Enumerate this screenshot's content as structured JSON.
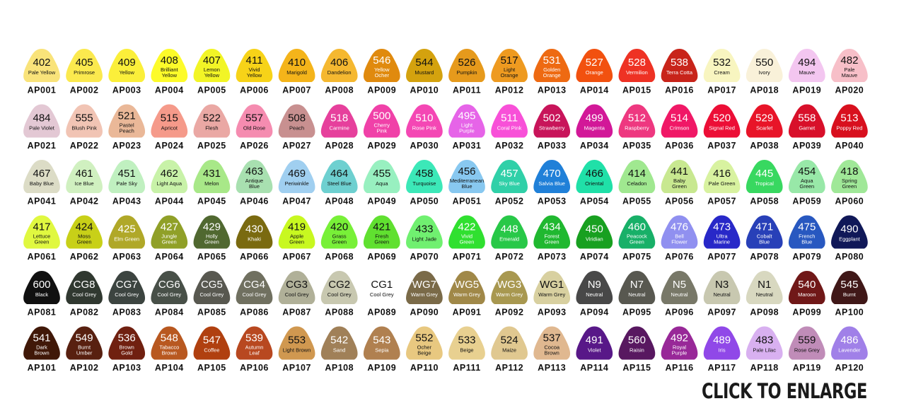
{
  "swatches": [
    {
      "code": "402",
      "name": [
        "Pale Yellow"
      ],
      "id": "AP001",
      "color": "#f9e37a"
    },
    {
      "code": "405",
      "name": [
        "Primrose"
      ],
      "id": "AP002",
      "color": "#fbe94e"
    },
    {
      "code": "409",
      "name": [
        "Yellow"
      ],
      "id": "AP003",
      "color": "#fbef3a"
    },
    {
      "code": "408",
      "name": [
        "Brilliant",
        "Yellow"
      ],
      "id": "AP004",
      "color": "#fdfb2a"
    },
    {
      "code": "407",
      "name": [
        "Lemon",
        "Yellow"
      ],
      "id": "AP005",
      "color": "#f2f526"
    },
    {
      "code": "411",
      "name": [
        "Vivid",
        "Yellow"
      ],
      "id": "AP006",
      "color": "#f7d318"
    },
    {
      "code": "410",
      "name": [
        "Marigold"
      ],
      "id": "AP007",
      "color": "#f4b41a"
    },
    {
      "code": "406",
      "name": [
        "Dandelion"
      ],
      "id": "AP008",
      "color": "#f5b830"
    },
    {
      "code": "546",
      "name": [
        "Yellow",
        "Ocher"
      ],
      "id": "AP009",
      "color": "#e08a0e"
    },
    {
      "code": "544",
      "name": [
        "Mustard"
      ],
      "id": "AP010",
      "color": "#d4a20e"
    },
    {
      "code": "526",
      "name": [
        "Pumpkin"
      ],
      "id": "AP011",
      "color": "#e69a1c"
    },
    {
      "code": "517",
      "name": [
        "Light",
        "Orange"
      ],
      "id": "AP012",
      "color": "#ee9a20"
    },
    {
      "code": "531",
      "name": [
        "Golden",
        "Orange"
      ],
      "id": "AP013",
      "color": "#ee6a12"
    },
    {
      "code": "527",
      "name": [
        "Orange"
      ],
      "id": "AP014",
      "color": "#f2510f"
    },
    {
      "code": "528",
      "name": [
        "Vermilion"
      ],
      "id": "AP015",
      "color": "#ee3224"
    },
    {
      "code": "538",
      "name": [
        "Terra Cotta"
      ],
      "id": "AP016",
      "color": "#c8241a"
    },
    {
      "code": "532",
      "name": [
        "Cream"
      ],
      "id": "AP017",
      "color": "#f8f5c0"
    },
    {
      "code": "550",
      "name": [
        "Ivory"
      ],
      "id": "AP018",
      "color": "#f9f1d9"
    },
    {
      "code": "494",
      "name": [
        "Mauve"
      ],
      "id": "AP019",
      "color": "#f3c6f0"
    },
    {
      "code": "482",
      "name": [
        "Pale",
        "Mauve"
      ],
      "id": "AP020",
      "color": "#f7bfc8"
    },
    {
      "code": "484",
      "name": [
        "Pale Violet"
      ],
      "id": "AP021",
      "color": "#e3c8d4"
    },
    {
      "code": "555",
      "name": [
        "Blush Pink"
      ],
      "id": "AP022",
      "color": "#f1c4b4"
    },
    {
      "code": "521",
      "name": [
        "Pastel",
        "Peach"
      ],
      "id": "AP023",
      "color": "#eab898"
    },
    {
      "code": "515",
      "name": [
        "Apricot"
      ],
      "id": "AP024",
      "color": "#f59a8a"
    },
    {
      "code": "522",
      "name": [
        "Flesh"
      ],
      "id": "AP025",
      "color": "#eaa8a4"
    },
    {
      "code": "557",
      "name": [
        "Old Rose"
      ],
      "id": "AP026",
      "color": "#f58cb0"
    },
    {
      "code": "508",
      "name": [
        "Peach"
      ],
      "id": "AP027",
      "color": "#c89090"
    },
    {
      "code": "518",
      "name": [
        "Carmine"
      ],
      "id": "AP028",
      "color": "#e6409c"
    },
    {
      "code": "500",
      "name": [
        "Cherry",
        "Pink"
      ],
      "id": "AP029",
      "color": "#f041a8"
    },
    {
      "code": "510",
      "name": [
        "Rose Pink"
      ],
      "id": "AP030",
      "color": "#f447b4"
    },
    {
      "code": "495",
      "name": [
        "Light",
        "Purple"
      ],
      "id": "AP031",
      "color": "#e664e8"
    },
    {
      "code": "511",
      "name": [
        "Coral Pink"
      ],
      "id": "AP032",
      "color": "#f850d8"
    },
    {
      "code": "502",
      "name": [
        "Strawberry"
      ],
      "id": "AP033",
      "color": "#c8145a"
    },
    {
      "code": "499",
      "name": [
        "Magenta"
      ],
      "id": "AP034",
      "color": "#d21898"
    },
    {
      "code": "512",
      "name": [
        "Raspberry"
      ],
      "id": "AP035",
      "color": "#ee3880"
    },
    {
      "code": "514",
      "name": [
        "Crimson"
      ],
      "id": "AP036",
      "color": "#f01866"
    },
    {
      "code": "520",
      "name": [
        "Signal Red"
      ],
      "id": "AP037",
      "color": "#ec0e36"
    },
    {
      "code": "529",
      "name": [
        "Scarlet"
      ],
      "id": "AP038",
      "color": "#e81428"
    },
    {
      "code": "558",
      "name": [
        "Garnet"
      ],
      "id": "AP039",
      "color": "#d8102a"
    },
    {
      "code": "513",
      "name": [
        "Poppy Red"
      ],
      "id": "AP040",
      "color": "#d8101e"
    },
    {
      "code": "467",
      "name": [
        "Baby Blue"
      ],
      "id": "AP041",
      "color": "#dcdcc6"
    },
    {
      "code": "461",
      "name": [
        "Ice Blue"
      ],
      "id": "AP042",
      "color": "#d0f0c0"
    },
    {
      "code": "451",
      "name": [
        "Pale Sky"
      ],
      "id": "AP043",
      "color": "#c0f0c0"
    },
    {
      "code": "462",
      "name": [
        "Light Aqua"
      ],
      "id": "AP044",
      "color": "#c8f2a8"
    },
    {
      "code": "431",
      "name": [
        "Melon"
      ],
      "id": "AP045",
      "color": "#a8e888"
    },
    {
      "code": "463",
      "name": [
        "Antique",
        "Blue"
      ],
      "id": "AP046",
      "color": "#a8e0b0"
    },
    {
      "code": "469",
      "name": [
        "Periwinkle"
      ],
      "id": "AP047",
      "color": "#a0cff0"
    },
    {
      "code": "464",
      "name": [
        "Steel Blue"
      ],
      "id": "AP048",
      "color": "#6ed0d0"
    },
    {
      "code": "455",
      "name": [
        "Aqua"
      ],
      "id": "AP049",
      "color": "#98f0c0"
    },
    {
      "code": "458",
      "name": [
        "Turquoise"
      ],
      "id": "AP050",
      "color": "#3ce8b8"
    },
    {
      "code": "456",
      "name": [
        "Mediterranean",
        "Blue"
      ],
      "id": "AP051",
      "color": "#88c8f0"
    },
    {
      "code": "457",
      "name": [
        "Sky Blue"
      ],
      "id": "AP052",
      "color": "#30d0a8"
    },
    {
      "code": "470",
      "name": [
        "Salvia Blue"
      ],
      "id": "AP053",
      "color": "#2080d8"
    },
    {
      "code": "466",
      "name": [
        "Oriental"
      ],
      "id": "AP054",
      "color": "#20e0a8"
    },
    {
      "code": "414",
      "name": [
        "Celadon"
      ],
      "id": "AP055",
      "color": "#a0e890"
    },
    {
      "code": "441",
      "name": [
        "Baby",
        "Green"
      ],
      "id": "AP056",
      "color": "#c8e890"
    },
    {
      "code": "416",
      "name": [
        "Pale Green"
      ],
      "id": "AP057",
      "color": "#d8f2a0"
    },
    {
      "code": "445",
      "name": [
        "Tropical"
      ],
      "id": "AP058",
      "color": "#38d860"
    },
    {
      "code": "454",
      "name": [
        "Aqua",
        "Green"
      ],
      "id": "AP059",
      "color": "#98e8a8"
    },
    {
      "code": "418",
      "name": [
        "Spring",
        "Green"
      ],
      "id": "AP060",
      "color": "#a0e898"
    },
    {
      "code": "417",
      "name": [
        "Lettuce",
        "Green"
      ],
      "id": "AP061",
      "color": "#e0f840"
    },
    {
      "code": "424",
      "name": [
        "Moss",
        "Green"
      ],
      "id": "AP062",
      "color": "#c8d018"
    },
    {
      "code": "425",
      "name": [
        "Elm Green"
      ],
      "id": "AP063",
      "color": "#b0a828"
    },
    {
      "code": "427",
      "name": [
        "Jungle",
        "Green"
      ],
      "id": "AP064",
      "color": "#90a028"
    },
    {
      "code": "429",
      "name": [
        "Holly",
        "Green"
      ],
      "id": "AP065",
      "color": "#506830"
    },
    {
      "code": "430",
      "name": [
        "Khaki"
      ],
      "id": "AP066",
      "color": "#7a6a10"
    },
    {
      "code": "419",
      "name": [
        "Apple",
        "Green"
      ],
      "id": "AP067",
      "color": "#c8f820"
    },
    {
      "code": "420",
      "name": [
        "Grass",
        "Green"
      ],
      "id": "AP068",
      "color": "#78f038"
    },
    {
      "code": "421",
      "name": [
        "Fresh",
        "Green"
      ],
      "id": "AP069",
      "color": "#60e030"
    },
    {
      "code": "433",
      "name": [
        "Light Jade"
      ],
      "id": "AP070",
      "color": "#70f070"
    },
    {
      "code": "422",
      "name": [
        "Vivid",
        "Green"
      ],
      "id": "AP071",
      "color": "#30e030"
    },
    {
      "code": "448",
      "name": [
        "Emerald"
      ],
      "id": "AP072",
      "color": "#28c848"
    },
    {
      "code": "434",
      "name": [
        "Forest",
        "Green"
      ],
      "id": "AP073",
      "color": "#20b830"
    },
    {
      "code": "450",
      "name": [
        "Viridian"
      ],
      "id": "AP074",
      "color": "#18a020"
    },
    {
      "code": "460",
      "name": [
        "Peacock",
        "Green"
      ],
      "id": "AP075",
      "color": "#18b068"
    },
    {
      "code": "476",
      "name": [
        "Bell",
        "Flower"
      ],
      "id": "AP076",
      "color": "#9090f0"
    },
    {
      "code": "473",
      "name": [
        "Ultra",
        "Marine"
      ],
      "id": "AP077",
      "color": "#2828c8"
    },
    {
      "code": "471",
      "name": [
        "Cobalt",
        "Blue"
      ],
      "id": "AP078",
      "color": "#2840b8"
    },
    {
      "code": "475",
      "name": [
        "French",
        "Blue"
      ],
      "id": "AP079",
      "color": "#2858c0"
    },
    {
      "code": "490",
      "name": [
        "Eggplant"
      ],
      "id": "AP080",
      "color": "#101858"
    },
    {
      "code": "600",
      "name": [
        "Black"
      ],
      "id": "AP081",
      "color": "#101010"
    },
    {
      "code": "CG8",
      "name": [
        "Cool Grey"
      ],
      "id": "AP082",
      "color": "#303830"
    },
    {
      "code": "CG7",
      "name": [
        "Cool Grey"
      ],
      "id": "AP083",
      "color": "#3c4440"
    },
    {
      "code": "CG6",
      "name": [
        "Cool Grey"
      ],
      "id": "AP084",
      "color": "#485048"
    },
    {
      "code": "CG5",
      "name": [
        "Cool Grey"
      ],
      "id": "AP085",
      "color": "#585850"
    },
    {
      "code": "CG4",
      "name": [
        "Cool Grey"
      ],
      "id": "AP086",
      "color": "#707060"
    },
    {
      "code": "CG3",
      "name": [
        "Cool Grey"
      ],
      "id": "AP087",
      "color": "#b0b098"
    },
    {
      "code": "CG2",
      "name": [
        "Cool Grey"
      ],
      "id": "AP088",
      "color": "#c8c8b0"
    },
    {
      "code": "CG1",
      "name": [
        "Cool Grey"
      ],
      "id": "AP089",
      "color": "#ffffff"
    },
    {
      "code": "WG7",
      "name": [
        "Warm Grey"
      ],
      "id": "AP090",
      "color": "#7a6a48"
    },
    {
      "code": "WG5",
      "name": [
        "Warm Grey"
      ],
      "id": "AP091",
      "color": "#a08848"
    },
    {
      "code": "WG3",
      "name": [
        "Warm Grey"
      ],
      "id": "AP092",
      "color": "#a89850"
    },
    {
      "code": "WG1",
      "name": [
        "Warm Grey"
      ],
      "id": "AP093",
      "color": "#d8d0a0"
    },
    {
      "code": "N9",
      "name": [
        "Neutral"
      ],
      "id": "AP094",
      "color": "#484848"
    },
    {
      "code": "N7",
      "name": [
        "Neutral"
      ],
      "id": "AP095",
      "color": "#585850"
    },
    {
      "code": "N5",
      "name": [
        "Neutral"
      ],
      "id": "AP096",
      "color": "#787868"
    },
    {
      "code": "N3",
      "name": [
        "Neutral"
      ],
      "id": "AP097",
      "color": "#c8c8b0"
    },
    {
      "code": "N1",
      "name": [
        "Neutral"
      ],
      "id": "AP098",
      "color": "#d8d8c0"
    },
    {
      "code": "540",
      "name": [
        "Maroon"
      ],
      "id": "AP099",
      "color": "#701818"
    },
    {
      "code": "545",
      "name": [
        "Burnt"
      ],
      "id": "AP100",
      "color": "#401818"
    },
    {
      "code": "541",
      "name": [
        "Dark",
        "Brown"
      ],
      "id": "AP101",
      "color": "#401808"
    },
    {
      "code": "549",
      "name": [
        "Burnt",
        "Umber"
      ],
      "id": "AP102",
      "color": "#582010"
    },
    {
      "code": "536",
      "name": [
        "Brown",
        "Gold"
      ],
      "id": "AP103",
      "color": "#702010"
    },
    {
      "code": "548",
      "name": [
        "Tabacco",
        "Brown"
      ],
      "id": "AP104",
      "color": "#b85820"
    },
    {
      "code": "547",
      "name": [
        "Coffee"
      ],
      "id": "AP105",
      "color": "#b04010"
    },
    {
      "code": "539",
      "name": [
        "Autumn",
        "Leaf"
      ],
      "id": "AP106",
      "color": "#b84820"
    },
    {
      "code": "553",
      "name": [
        "Light Brown"
      ],
      "id": "AP107",
      "color": "#d09850"
    },
    {
      "code": "542",
      "name": [
        "Sand"
      ],
      "id": "AP108",
      "color": "#a08058"
    },
    {
      "code": "543",
      "name": [
        "Sepia"
      ],
      "id": "AP109",
      "color": "#b08050"
    },
    {
      "code": "552",
      "name": [
        "Ocher",
        "Beige"
      ],
      "id": "AP110",
      "color": "#e8c880"
    },
    {
      "code": "533",
      "name": [
        "Beige"
      ],
      "id": "AP111",
      "color": "#e8d090"
    },
    {
      "code": "524",
      "name": [
        "Maize"
      ],
      "id": "AP112",
      "color": "#e0c890"
    },
    {
      "code": "537",
      "name": [
        "Cocoa",
        "Brown"
      ],
      "id": "AP113",
      "color": "#e0b890"
    },
    {
      "code": "491",
      "name": [
        "Violet"
      ],
      "id": "AP114",
      "color": "#581888"
    },
    {
      "code": "560",
      "name": [
        "Raisin"
      ],
      "id": "AP115",
      "color": "#581860"
    },
    {
      "code": "492",
      "name": [
        "Royal",
        "Purple"
      ],
      "id": "AP116",
      "color": "#982898"
    },
    {
      "code": "489",
      "name": [
        "Iris"
      ],
      "id": "AP117",
      "color": "#9048e8"
    },
    {
      "code": "483",
      "name": [
        "Pale Lilac"
      ],
      "id": "AP118",
      "color": "#d8b0f0"
    },
    {
      "code": "559",
      "name": [
        "Rose Grey"
      ],
      "id": "AP119",
      "color": "#c08cb8"
    },
    {
      "code": "486",
      "name": [
        "Lavender"
      ],
      "id": "AP120",
      "color": "#a080e8"
    }
  ],
  "button": "CLICK TO ENLARGE"
}
